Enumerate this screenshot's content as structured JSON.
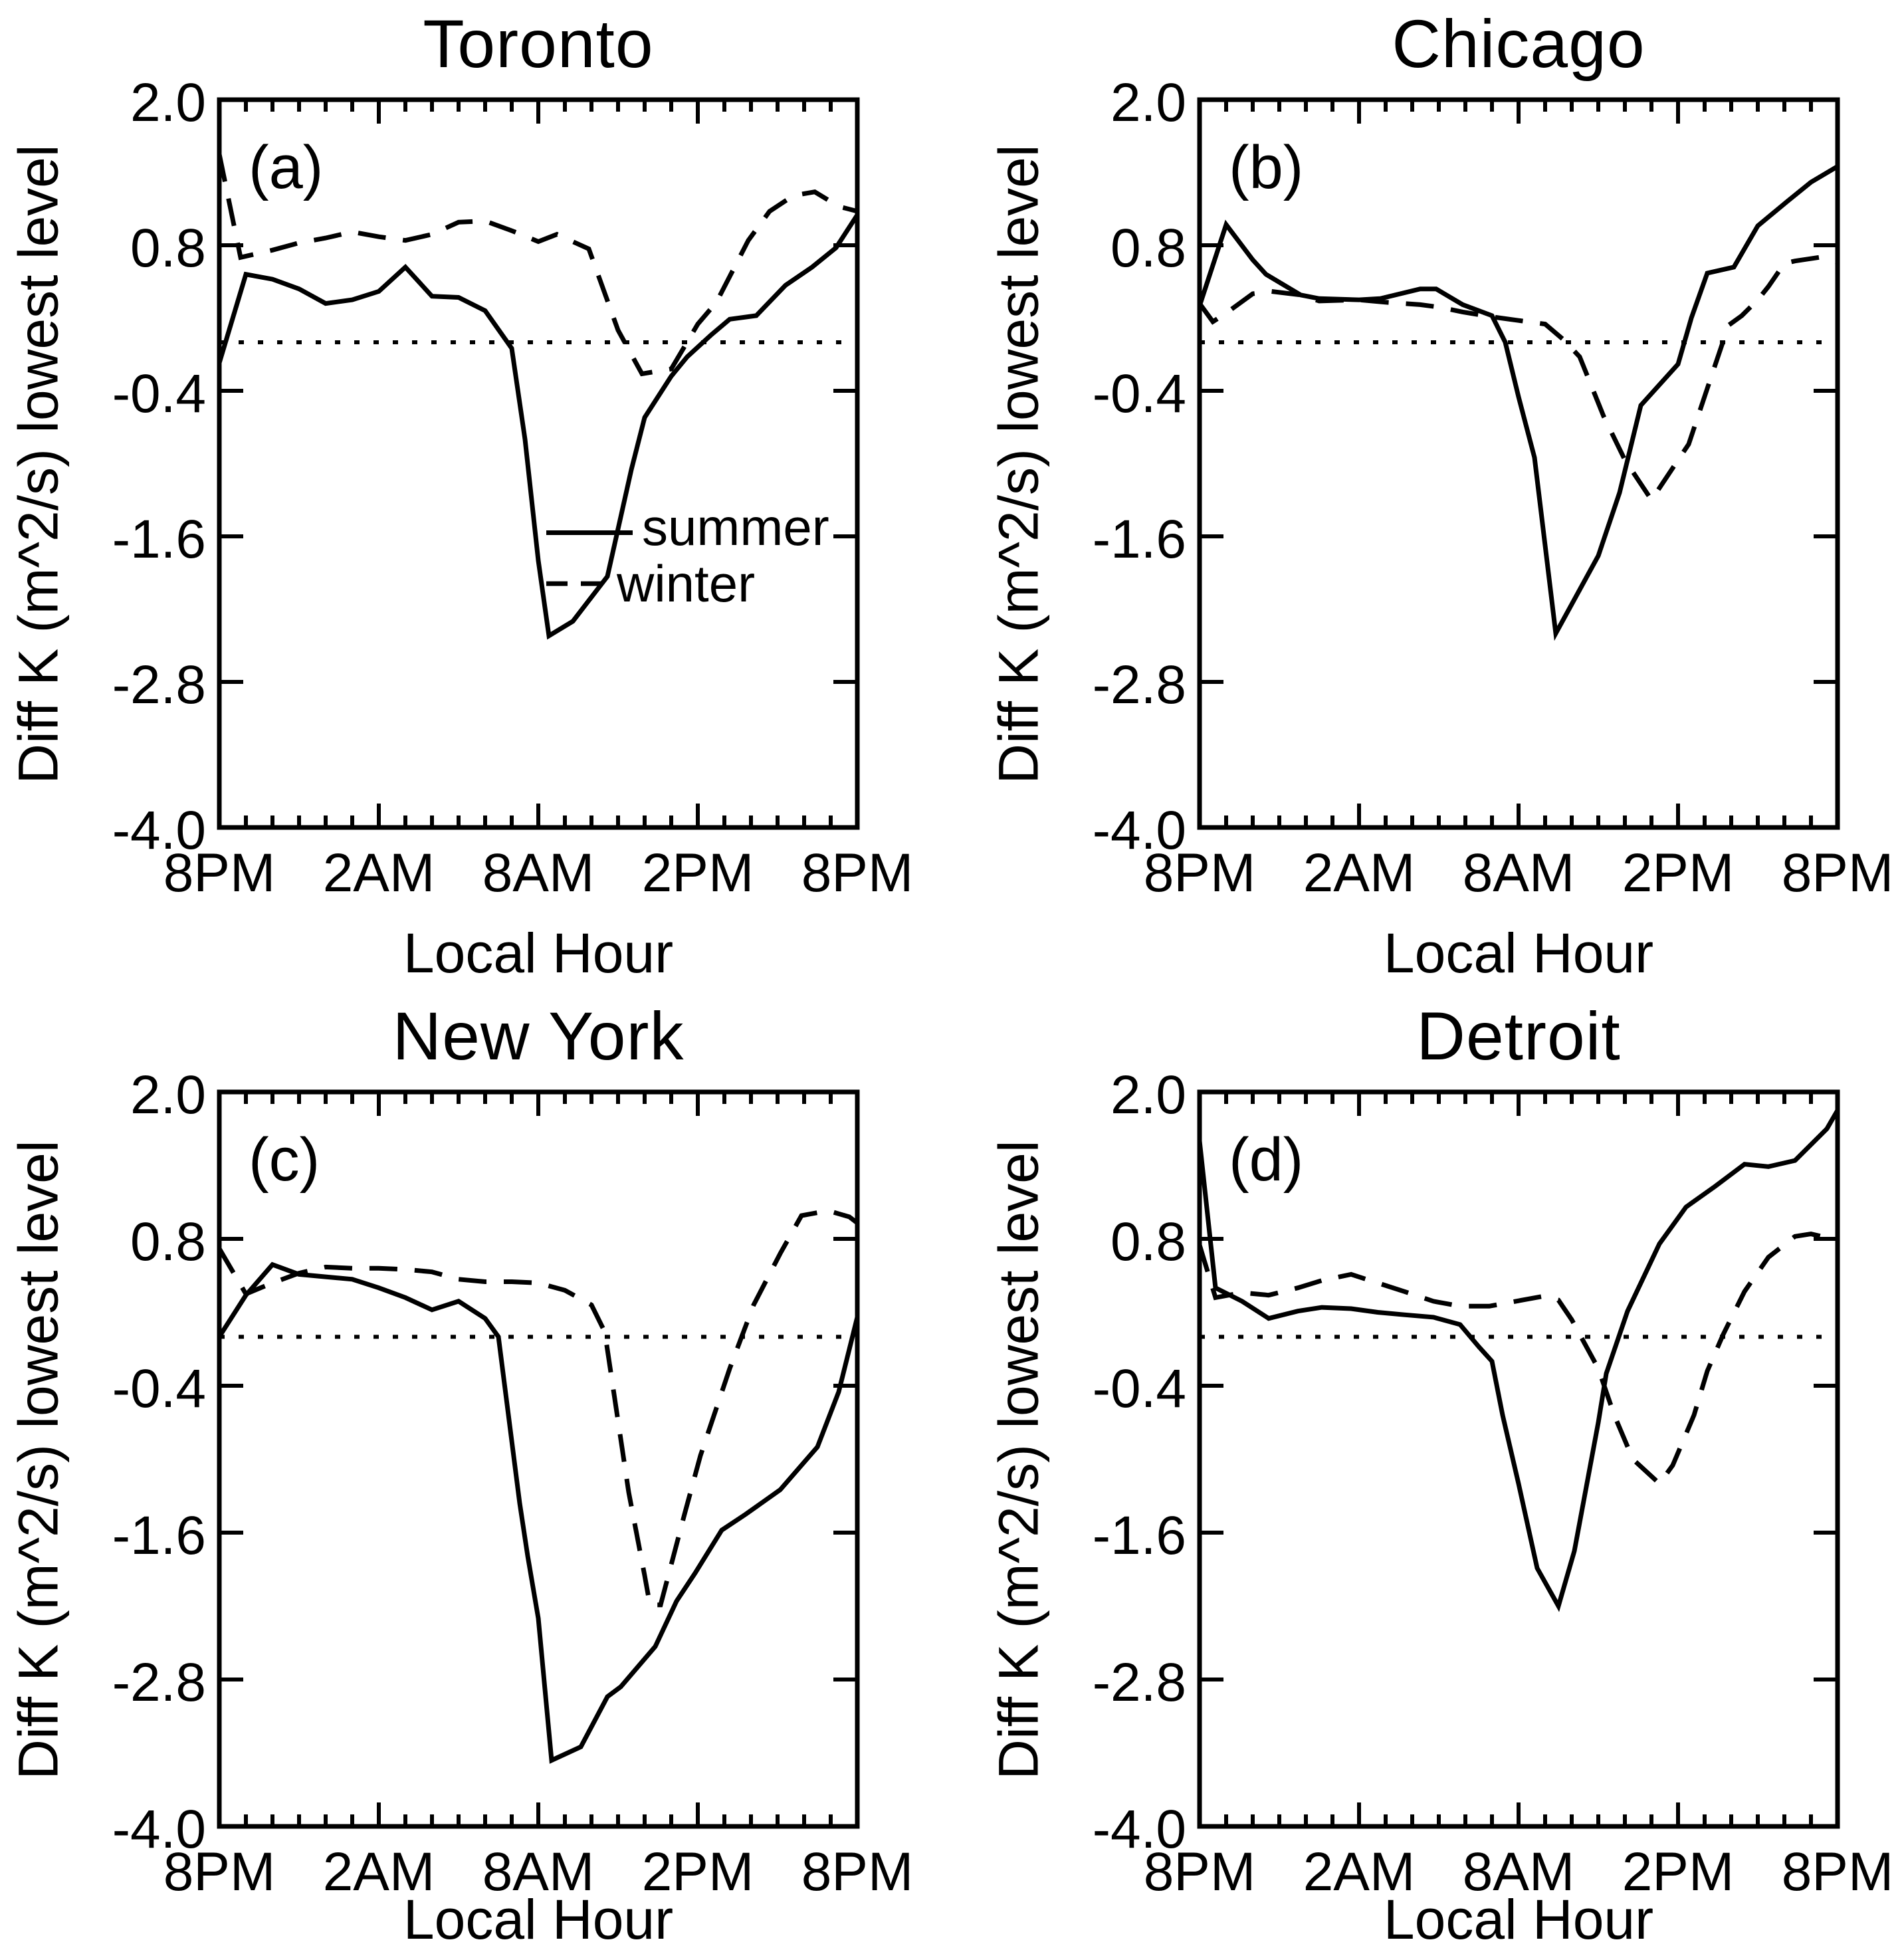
{
  "figure": {
    "ylabel": "Diff K (m^2/s) lowest level",
    "xlabel": "Local Hour",
    "y_tick_labels": [
      "2.0",
      "0.8",
      "-0.4",
      "-1.6",
      "-2.8",
      "-4.0"
    ],
    "x_tick_labels": [
      "8PM",
      "2AM",
      "8AM",
      "2PM",
      "8PM"
    ],
    "legend": {
      "summer_label": "summer",
      "winter_label": "winter"
    },
    "colors": {
      "foreground": "#000000",
      "background": "#ffffff"
    }
  },
  "chart_data": [
    {
      "type": "line",
      "title": "Toronto",
      "panel_label": "(a)",
      "xlabel": "Local Hour",
      "ylabel": "Diff K (m^2/s) lowest level",
      "x_axis_note": "x = hours after 8PM local (0 to 24)",
      "xlim": [
        0,
        24
      ],
      "ylim": [
        -4.0,
        2.0
      ],
      "x_tick_values": [
        0,
        6,
        12,
        18,
        24
      ],
      "x_tick_labels": [
        "8PM",
        "2AM",
        "8AM",
        "2PM",
        "8PM"
      ],
      "y_tick_values": [
        2.0,
        0.8,
        -0.4,
        -1.6,
        -2.8,
        -4.0
      ],
      "zero_reference_line": 0.0,
      "grid": false,
      "has_legend": true,
      "legend_position": "inside center-left",
      "series": [
        {
          "name": "summer",
          "line_style": "solid",
          "points": [
            [
              0,
              -0.17
            ],
            [
              1,
              0.56
            ],
            [
              2,
              0.52
            ],
            [
              3,
              0.44
            ],
            [
              4,
              0.32
            ],
            [
              5,
              0.35
            ],
            [
              6,
              0.42
            ],
            [
              7,
              0.62
            ],
            [
              8,
              0.38
            ],
            [
              9,
              0.37
            ],
            [
              10,
              0.26
            ],
            [
              11,
              -0.05
            ],
            [
              11.5,
              -0.8
            ],
            [
              12,
              -1.8
            ],
            [
              12.4,
              -2.42
            ],
            [
              13.3,
              -2.3
            ],
            [
              14.6,
              -1.93
            ],
            [
              15.5,
              -1.05
            ],
            [
              16,
              -0.62
            ],
            [
              17,
              -0.28
            ],
            [
              17.6,
              -0.12
            ],
            [
              18.5,
              0.06
            ],
            [
              19.2,
              0.19
            ],
            [
              20.2,
              0.22
            ],
            [
              21.3,
              0.47
            ],
            [
              22.3,
              0.62
            ],
            [
              23.2,
              0.78
            ],
            [
              24,
              1.05
            ]
          ]
        },
        {
          "name": "winter",
          "line_style": "dashed",
          "points": [
            [
              0,
              1.55
            ],
            [
              0.8,
              0.7
            ],
            [
              2,
              0.76
            ],
            [
              3,
              0.82
            ],
            [
              4,
              0.86
            ],
            [
              5,
              0.91
            ],
            [
              6,
              0.87
            ],
            [
              7,
              0.84
            ],
            [
              8,
              0.89
            ],
            [
              9,
              0.99
            ],
            [
              10,
              1.0
            ],
            [
              11,
              0.92
            ],
            [
              12,
              0.83
            ],
            [
              12.7,
              0.89
            ],
            [
              13.9,
              0.77
            ],
            [
              15,
              0.1
            ],
            [
              15.9,
              -0.26
            ],
            [
              17,
              -0.22
            ],
            [
              18,
              0.15
            ],
            [
              18.7,
              0.33
            ],
            [
              19.9,
              0.84
            ],
            [
              20.7,
              1.08
            ],
            [
              21.6,
              1.21
            ],
            [
              22.4,
              1.24
            ],
            [
              23.3,
              1.12
            ],
            [
              24,
              1.08
            ]
          ]
        }
      ]
    },
    {
      "type": "line",
      "title": "Chicago",
      "panel_label": "(b)",
      "xlabel": "Local Hour",
      "ylabel": "Diff K (m^2/s) lowest level",
      "xlim": [
        0,
        24
      ],
      "ylim": [
        -4.0,
        2.0
      ],
      "x_tick_values": [
        0,
        6,
        12,
        18,
        24
      ],
      "x_tick_labels": [
        "8PM",
        "2AM",
        "8AM",
        "2PM",
        "8PM"
      ],
      "y_tick_values": [
        2.0,
        0.8,
        -0.4,
        -1.6,
        -2.8,
        -4.0
      ],
      "zero_reference_line": 0.0,
      "grid": false,
      "has_legend": false,
      "series": [
        {
          "name": "summer",
          "line_style": "solid",
          "points": [
            [
              0,
              0.3
            ],
            [
              1,
              0.97
            ],
            [
              2,
              0.68
            ],
            [
              2.5,
              0.56
            ],
            [
              3.8,
              0.39
            ],
            [
              4.5,
              0.36
            ],
            [
              6,
              0.35
            ],
            [
              6.8,
              0.36
            ],
            [
              8.3,
              0.44
            ],
            [
              8.9,
              0.44
            ],
            [
              9.9,
              0.31
            ],
            [
              11,
              0.22
            ],
            [
              11.5,
              0.0
            ],
            [
              12,
              -0.45
            ],
            [
              12.6,
              -0.95
            ],
            [
              13.4,
              -2.4
            ],
            [
              15,
              -1.76
            ],
            [
              15.8,
              -1.24
            ],
            [
              16.6,
              -0.52
            ],
            [
              18,
              -0.18
            ],
            [
              18.5,
              0.2
            ],
            [
              19.1,
              0.57
            ],
            [
              20.1,
              0.62
            ],
            [
              21,
              0.96
            ],
            [
              22.1,
              1.16
            ],
            [
              23,
              1.32
            ],
            [
              24,
              1.45
            ]
          ]
        },
        {
          "name": "winter",
          "line_style": "dashed",
          "points": [
            [
              0,
              0.32
            ],
            [
              0.5,
              0.17
            ],
            [
              1,
              0.24
            ],
            [
              2,
              0.4
            ],
            [
              2.7,
              0.42
            ],
            [
              3.8,
              0.39
            ],
            [
              4.5,
              0.34
            ],
            [
              6,
              0.35
            ],
            [
              7,
              0.33
            ],
            [
              8.3,
              0.31
            ],
            [
              9,
              0.29
            ],
            [
              9.9,
              0.25
            ],
            [
              11,
              0.21
            ],
            [
              12,
              0.18
            ],
            [
              13,
              0.15
            ],
            [
              13.7,
              0.02
            ],
            [
              14.3,
              -0.12
            ],
            [
              15.2,
              -0.61
            ],
            [
              16,
              -0.97
            ],
            [
              17,
              -1.3
            ],
            [
              18.4,
              -0.84
            ],
            [
              19.3,
              -0.25
            ],
            [
              19.9,
              0.14
            ],
            [
              20.4,
              0.22
            ],
            [
              21,
              0.35
            ],
            [
              21.4,
              0.46
            ],
            [
              22,
              0.65
            ],
            [
              22.4,
              0.67
            ],
            [
              23.3,
              0.7
            ],
            [
              24,
              0.66
            ]
          ]
        }
      ]
    },
    {
      "type": "line",
      "title": "New York",
      "panel_label": "(c)",
      "xlabel": "Local Hour",
      "ylabel": "Diff K (m^2/s) lowest level",
      "xlim": [
        0,
        24
      ],
      "ylim": [
        -4.0,
        2.0
      ],
      "x_tick_values": [
        0,
        6,
        12,
        18,
        24
      ],
      "x_tick_labels": [
        "8PM",
        "2AM",
        "8AM",
        "2PM",
        "8PM"
      ],
      "y_tick_values": [
        2.0,
        0.8,
        -0.4,
        -1.6,
        -2.8,
        -4.0
      ],
      "zero_reference_line": 0.0,
      "grid": false,
      "has_legend": false,
      "series": [
        {
          "name": "summer",
          "line_style": "solid",
          "points": [
            [
              0,
              0.0
            ],
            [
              1,
              0.34
            ],
            [
              2,
              0.59
            ],
            [
              3,
              0.51
            ],
            [
              4,
              0.49
            ],
            [
              5,
              0.47
            ],
            [
              6,
              0.4
            ],
            [
              7,
              0.32
            ],
            [
              8,
              0.22
            ],
            [
              9,
              0.29
            ],
            [
              10,
              0.15
            ],
            [
              10.5,
              0.0
            ],
            [
              11.3,
              -1.36
            ],
            [
              11.6,
              -1.79
            ],
            [
              12,
              -2.3
            ],
            [
              12.5,
              -3.46
            ],
            [
              13.6,
              -3.35
            ],
            [
              14.6,
              -2.94
            ],
            [
              15.1,
              -2.86
            ],
            [
              16.4,
              -2.53
            ],
            [
              17.2,
              -2.16
            ],
            [
              17.9,
              -1.93
            ],
            [
              18.9,
              -1.58
            ],
            [
              19.8,
              -1.45
            ],
            [
              21.1,
              -1.25
            ],
            [
              22.5,
              -0.9
            ],
            [
              23.3,
              -0.45
            ],
            [
              24,
              0.16
            ]
          ]
        },
        {
          "name": "winter",
          "line_style": "dashed",
          "points": [
            [
              0,
              0.72
            ],
            [
              1,
              0.35
            ],
            [
              2,
              0.44
            ],
            [
              3,
              0.52
            ],
            [
              4,
              0.57
            ],
            [
              5,
              0.56
            ],
            [
              6,
              0.56
            ],
            [
              7,
              0.55
            ],
            [
              8,
              0.53
            ],
            [
              9,
              0.47
            ],
            [
              10,
              0.45
            ],
            [
              11,
              0.45
            ],
            [
              12,
              0.44
            ],
            [
              13,
              0.38
            ],
            [
              14,
              0.26
            ],
            [
              14.5,
              0.04
            ],
            [
              15.4,
              -1.27
            ],
            [
              16,
              -1.95
            ],
            [
              16.2,
              -2.19
            ],
            [
              16.6,
              -2.19
            ],
            [
              17.5,
              -1.45
            ],
            [
              18.1,
              -0.97
            ],
            [
              19.2,
              -0.26
            ],
            [
              20.1,
              0.26
            ],
            [
              21.1,
              0.68
            ],
            [
              21.9,
              0.99
            ],
            [
              22.9,
              1.03
            ],
            [
              23.7,
              0.98
            ],
            [
              24,
              0.93
            ]
          ]
        }
      ]
    },
    {
      "type": "line",
      "title": "Detroit",
      "panel_label": "(d)",
      "xlabel": "Local Hour",
      "ylabel": "Diff K (m^2/s) lowest level",
      "xlim": [
        0,
        24
      ],
      "ylim": [
        -4.0,
        2.0
      ],
      "x_tick_values": [
        0,
        6,
        12,
        18,
        24
      ],
      "x_tick_labels": [
        "8PM",
        "2AM",
        "8AM",
        "2PM",
        "8PM"
      ],
      "y_tick_values": [
        2.0,
        0.8,
        -0.4,
        -1.6,
        -2.8,
        -4.0
      ],
      "zero_reference_line": 0.0,
      "grid": false,
      "has_legend": false,
      "series": [
        {
          "name": "summer",
          "line_style": "solid",
          "points": [
            [
              0,
              1.6
            ],
            [
              0.6,
              0.4
            ],
            [
              1.6,
              0.29
            ],
            [
              2.6,
              0.15
            ],
            [
              3.7,
              0.21
            ],
            [
              4.6,
              0.24
            ],
            [
              5.7,
              0.23
            ],
            [
              6.7,
              0.2
            ],
            [
              7.7,
              0.18
            ],
            [
              8.8,
              0.16
            ],
            [
              9.8,
              0.1
            ],
            [
              10.5,
              -0.08
            ],
            [
              11,
              -0.2
            ],
            [
              11.4,
              -0.64
            ],
            [
              12,
              -1.2
            ],
            [
              12.7,
              -1.89
            ],
            [
              13.5,
              -2.2
            ],
            [
              14.1,
              -1.75
            ],
            [
              15,
              -0.7
            ],
            [
              15.3,
              -0.3
            ],
            [
              16.1,
              0.21
            ],
            [
              17.3,
              0.76
            ],
            [
              18.3,
              1.06
            ],
            [
              19.4,
              1.23
            ],
            [
              20.5,
              1.41
            ],
            [
              21.4,
              1.39
            ],
            [
              22.4,
              1.44
            ],
            [
              23.6,
              1.7
            ],
            [
              24,
              1.85
            ]
          ]
        },
        {
          "name": "winter",
          "line_style": "dashed",
          "points": [
            [
              0,
              0.75
            ],
            [
              0.6,
              0.32
            ],
            [
              1.6,
              0.36
            ],
            [
              2.6,
              0.34
            ],
            [
              3.7,
              0.4
            ],
            [
              4.6,
              0.46
            ],
            [
              5.7,
              0.51
            ],
            [
              6.7,
              0.44
            ],
            [
              7.7,
              0.37
            ],
            [
              8.8,
              0.29
            ],
            [
              9.8,
              0.25
            ],
            [
              10.9,
              0.25
            ],
            [
              11.9,
              0.29
            ],
            [
              12.9,
              0.33
            ],
            [
              13.5,
              0.3
            ],
            [
              14,
              0.14
            ],
            [
              14.5,
              -0.06
            ],
            [
              15,
              -0.26
            ],
            [
              15.6,
              -0.64
            ],
            [
              16.3,
              -1.0
            ],
            [
              17.3,
              -1.2
            ],
            [
              17.8,
              -1.05
            ],
            [
              18.6,
              -0.64
            ],
            [
              19.1,
              -0.28
            ],
            [
              19.7,
              0.02
            ],
            [
              20.5,
              0.37
            ],
            [
              21.4,
              0.65
            ],
            [
              22.4,
              0.82
            ],
            [
              23,
              0.84
            ],
            [
              23.6,
              0.81
            ],
            [
              24,
              0.8
            ]
          ]
        }
      ]
    }
  ]
}
